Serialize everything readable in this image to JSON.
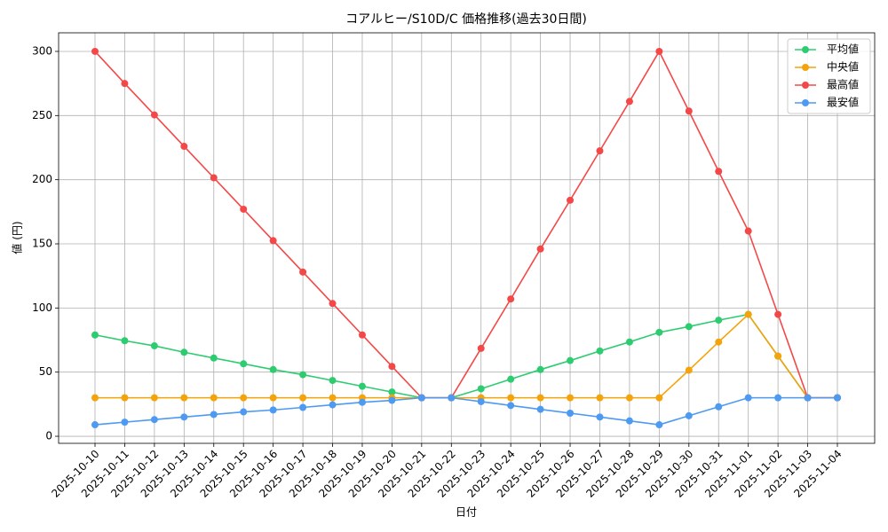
{
  "chart_data": {
    "type": "line",
    "title": "コアルヒー/S10D/C 価格推移(過去30日間)",
    "x_label": "日付",
    "y_label": "値 (円)",
    "categories": [
      "2025-10-10",
      "2025-10-11",
      "2025-10-12",
      "2025-10-13",
      "2025-10-14",
      "2025-10-15",
      "2025-10-16",
      "2025-10-17",
      "2025-10-18",
      "2025-10-19",
      "2025-10-20",
      "2025-10-21",
      "2025-10-22",
      "2025-10-23",
      "2025-10-24",
      "2025-10-25",
      "2025-10-26",
      "2025-10-27",
      "2025-10-28",
      "2025-10-29",
      "2025-10-30",
      "2025-10-31",
      "2025-11-01",
      "2025-11-02",
      "2025-11-03",
      "2025-11-04"
    ],
    "series": [
      {
        "name": "平均値",
        "color": "#2ecc71",
        "values": [
          79,
          74.5,
          70.5,
          65.5,
          61,
          56.5,
          52,
          48,
          43.5,
          39,
          34.5,
          30,
          30,
          37,
          44.5,
          52,
          59,
          66.5,
          73.5,
          81,
          85.5,
          90.5,
          95,
          62.5,
          30,
          30
        ]
      },
      {
        "name": "中央値",
        "color": "#f5a30a",
        "values": [
          30,
          30,
          30,
          30,
          30,
          30,
          30,
          30,
          30,
          30,
          30,
          30,
          30,
          30,
          30,
          30,
          30,
          30,
          30,
          30,
          51.5,
          73.5,
          95,
          62.5,
          30,
          30
        ]
      },
      {
        "name": "最高値",
        "color": "#f44848",
        "values": [
          300,
          275,
          250.5,
          226,
          201.5,
          177,
          152.5,
          128,
          103.5,
          79,
          54.5,
          30,
          30,
          68.5,
          107,
          146,
          184,
          222.5,
          261,
          300,
          253.5,
          206.5,
          160,
          95,
          30,
          30
        ]
      },
      {
        "name": "最安値",
        "color": "#4d9af2",
        "values": [
          9,
          11,
          13,
          15,
          17,
          19,
          20.5,
          22.5,
          24.5,
          26.5,
          28,
          30,
          30,
          27,
          24,
          21,
          18,
          15,
          12,
          9,
          16,
          23,
          30,
          30,
          30,
          30
        ]
      }
    ],
    "ylim": [
      -5.5,
      314.5
    ],
    "yticks": [
      0,
      50,
      100,
      150,
      200,
      250,
      300
    ],
    "grid": true,
    "legend": "upper-right"
  }
}
